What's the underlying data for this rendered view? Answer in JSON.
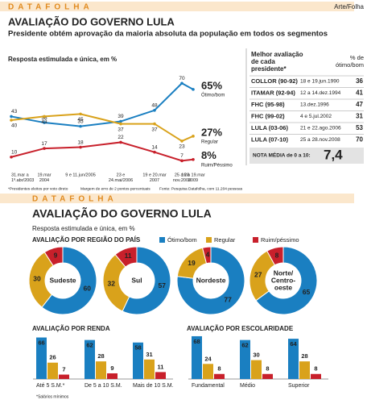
{
  "header": {
    "brand": "DATAFOLHA",
    "credit": "Arte/Folha",
    "title": "AVALIAÇÃO DO GOVERNO LULA",
    "subtitle": "Presidente obtém aprovação da maioria absoluta da população em todos os segmentos"
  },
  "footnotes": [
    "*Presidentes eleitos por voto direto",
    "Margem de erro de 2 pontos percentuais",
    "Fonte: Pesquisa Datafolha, com 11.204 pessoas"
  ],
  "table": {
    "title_lines": [
      "Melhor avaliação",
      "de cada",
      "presidente*"
    ],
    "value_header": [
      "% de",
      "ótimo/bom"
    ],
    "rows": [
      [
        "COLLOR (90-92)",
        "18 e 19.jun.1990",
        36
      ],
      [
        "ITAMAR (92-94)",
        "12 a 14.dez.1994",
        41
      ],
      [
        "FHC (95-98)",
        "13.dez.1996",
        47
      ],
      [
        "FHC (99-02)",
        "4 e 5.jul.2002",
        31
      ],
      [
        "LULA (03-06)",
        "21 e 22.ago.2006",
        53
      ],
      [
        "LULA (07-10)",
        "25 a 28.nov.2008",
        70
      ]
    ],
    "average_label": "NOTA MÉDIA de 0 a 10:",
    "average": "7,4"
  },
  "bottom": {
    "brand": "DATAFOLHA",
    "title": "AVALIAÇÃO DO GOVERNO LULA",
    "subtitle": "Resposta estimulada e única, em %"
  },
  "chart_data": [
    {
      "type": "line",
      "subtitle": "Resposta estimulada e única, em %",
      "ylim": [
        0,
        80
      ],
      "categories": [
        [
          "31.mar a",
          "1º.abr/2003"
        ],
        [
          "19.mar",
          "2004"
        ],
        [
          "9 e 11.jun/2005"
        ],
        [
          "23 e",
          "24.mai/2006"
        ],
        [
          "19 e 20.mar",
          "2007"
        ],
        [
          "25 a 28",
          "nov.2008"
        ],
        [
          "16 a 19.mar",
          "2009"
        ]
      ],
      "series": [
        {
          "name": "Ótimo/bom",
          "color": "#1a7fc1",
          "values": [
            43,
            38,
            35,
            39,
            48,
            70,
            65
          ],
          "value_labels": [
            "43",
            "38",
            "35",
            "39",
            "48",
            "70",
            "65%"
          ]
        },
        {
          "name": "Regular",
          "color": "#d9a21b",
          "values": [
            40,
            43,
            45,
            37,
            37,
            23,
            27
          ],
          "value_labels": [
            "40",
            "43",
            "45",
            "37",
            "37",
            "23",
            "27%"
          ]
        },
        {
          "name": "Ruim/Péssimo",
          "color": "#c8202b",
          "values": [
            10,
            17,
            18,
            22,
            14,
            7,
            8
          ],
          "value_labels": [
            "10",
            "17",
            "18",
            "22",
            "14",
            "7",
            "8%"
          ]
        }
      ]
    },
    {
      "type": "donut",
      "title": "AVALIAÇÃO POR REGIÃO DO PAÍS",
      "categories": [
        [
          "Sudeste"
        ],
        [
          "Sul"
        ],
        [
          "Nordeste"
        ],
        [
          "Norte/",
          "Centro-",
          "oeste"
        ]
      ],
      "series": [
        {
          "name": "Ótimo/bom",
          "color": "#1a7fc1",
          "values": [
            60,
            57,
            77,
            65
          ]
        },
        {
          "name": "Regular",
          "color": "#d9a21b",
          "values": [
            30,
            32,
            19,
            27
          ]
        },
        {
          "name": "Ruim/péssimo",
          "color": "#c8202b",
          "values": [
            9,
            11,
            4,
            8
          ]
        }
      ]
    },
    {
      "type": "bar",
      "title": "AVALIAÇÃO POR RENDA",
      "note": "*Salários mínimos",
      "categories": [
        "Até 5 S.M.*",
        "De 5 a 10 S.M.",
        "Mais de 10 S.M."
      ],
      "series": [
        {
          "color": "#1a7fc1",
          "values": [
            66,
            62,
            58
          ]
        },
        {
          "color": "#d9a21b",
          "values": [
            26,
            28,
            31
          ]
        },
        {
          "color": "#c8202b",
          "values": [
            7,
            9,
            11
          ]
        }
      ]
    },
    {
      "type": "bar",
      "title": "AVALIAÇÃO POR ESCOLARIDADE",
      "categories": [
        "Fundamental",
        "Médio",
        "Superior"
      ],
      "series": [
        {
          "color": "#1a7fc1",
          "values": [
            68,
            62,
            64
          ]
        },
        {
          "color": "#d9a21b",
          "values": [
            24,
            30,
            28
          ]
        },
        {
          "color": "#c8202b",
          "values": [
            8,
            8,
            8
          ]
        }
      ]
    }
  ]
}
